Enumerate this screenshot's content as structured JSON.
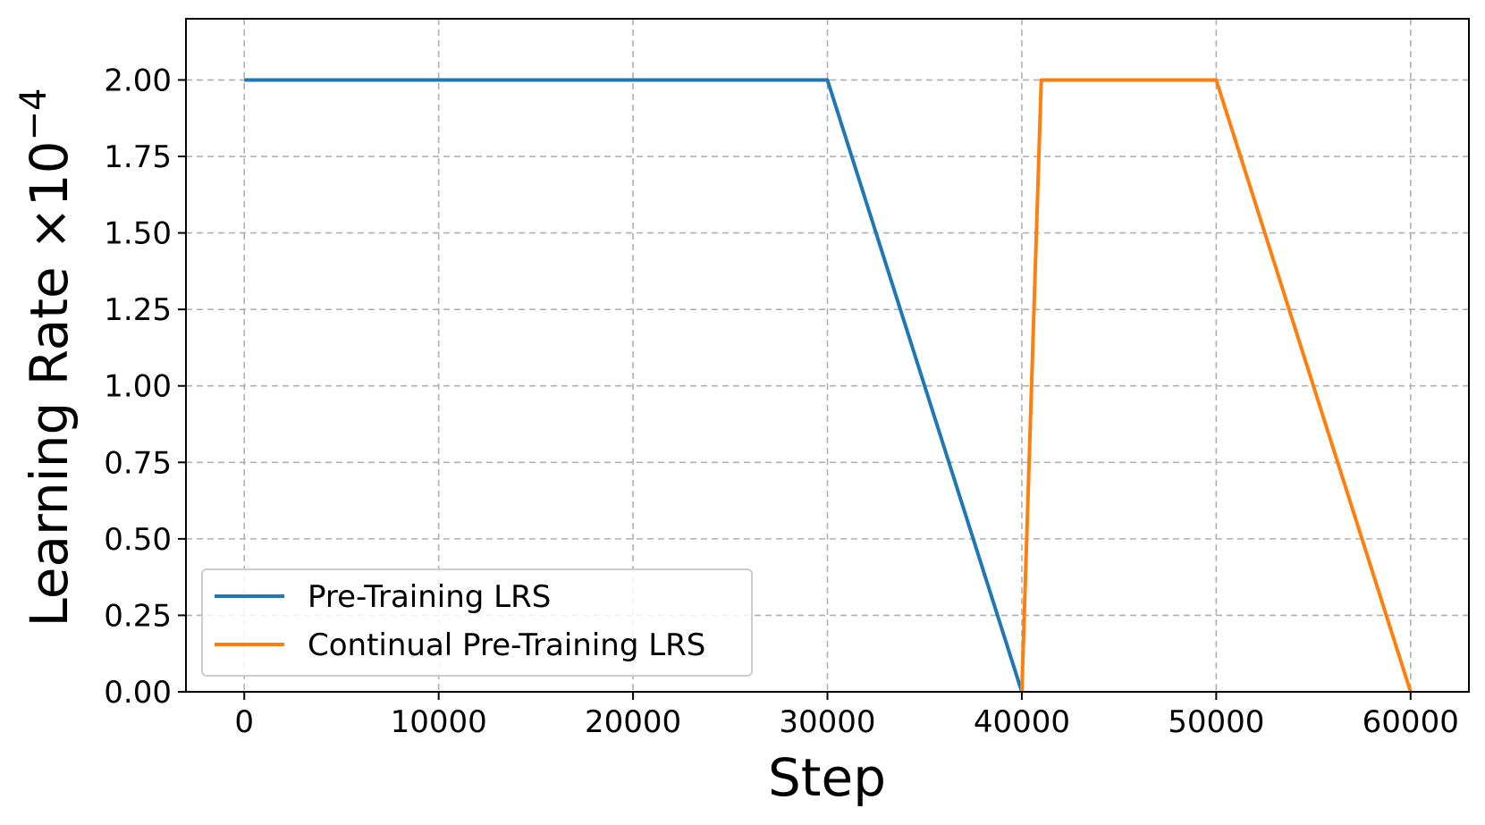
{
  "chart_data": {
    "type": "line",
    "title": "",
    "xlabel": "Step",
    "ylabel_main": "Learning Rate ×10",
    "ylabel_exp": "−4",
    "xlim": [
      -3000,
      63000
    ],
    "ylim": [
      0,
      2.2
    ],
    "xticks": [
      0,
      10000,
      20000,
      30000,
      40000,
      50000,
      60000
    ],
    "xtick_labels": [
      "0",
      "10000",
      "20000",
      "30000",
      "40000",
      "50000",
      "60000"
    ],
    "yticks": [
      0,
      0.25,
      0.5,
      0.75,
      1.0,
      1.25,
      1.5,
      1.75,
      2.0
    ],
    "ytick_labels": [
      "0.00",
      "0.25",
      "0.50",
      "0.75",
      "1.00",
      "1.25",
      "1.50",
      "1.75",
      "2.00"
    ],
    "grid": true,
    "legend_position": "lower-left",
    "series": [
      {
        "name": "Pre-Training LRS",
        "color": "#1f77b4",
        "x": [
          0,
          30000,
          40000
        ],
        "y": [
          2.0,
          2.0,
          0.0
        ]
      },
      {
        "name": "Continual Pre-Training LRS",
        "color": "#ff7f0e",
        "x": [
          40000,
          41000,
          50000,
          60000
        ],
        "y": [
          0.0,
          2.0,
          2.0,
          0.0
        ]
      }
    ]
  }
}
